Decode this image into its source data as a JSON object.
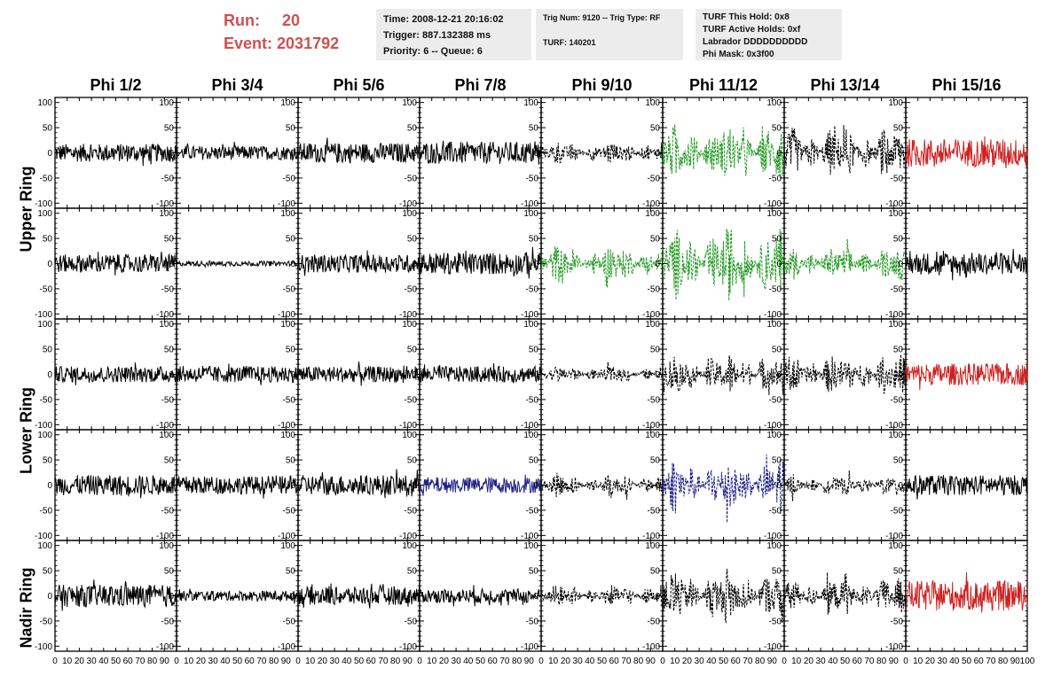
{
  "header": {
    "run_label": "Run:",
    "run_value": "20",
    "event_label": "Event:",
    "event_value": "2031792",
    "time": "Time: 2008-12-21 20:16:02",
    "trigger": "Trigger: 887.132388 ms",
    "priority": "Priority: 6 -- Queue: 6",
    "trig_num": "Trig Num: 9120 -- Trig Type: RF",
    "turf": "TURF: 140201",
    "turf_this_hold": "TURF This Hold: 0x8",
    "turf_active_holds": "TURF Active Holds: 0xf",
    "labrador": "Labrador DDDDDDDDDD",
    "phi_mask": "Phi Mask: 0x3f00"
  },
  "columns": [
    "Phi 1/2",
    "Phi 3/4",
    "Phi 5/6",
    "Phi 7/8",
    "Phi 9/10",
    "Phi 11/12",
    "Phi 13/14",
    "Phi 15/16"
  ],
  "rings": [
    "Upper Ring",
    "Lower Ring",
    "Nadir Ring"
  ],
  "colors": {
    "black": "#000000",
    "green": "#229922",
    "red": "#cc2222",
    "blue": "#222288",
    "header_red": "#d05050",
    "info_bg": "#ececec"
  },
  "chart_data": {
    "type": "line",
    "xlim": [
      0,
      100
    ],
    "ylim": [
      -110,
      110
    ],
    "x_ticks": [
      0,
      10,
      20,
      30,
      40,
      50,
      60,
      70,
      80,
      90,
      100
    ],
    "y_ticks": [
      -100,
      -50,
      0,
      50,
      100
    ],
    "x_tick_labels": [
      "0",
      "10",
      "20",
      "30",
      "40",
      "50",
      "60",
      "70",
      "80",
      "90",
      "10",
      "0",
      "10",
      "20",
      "30",
      "40",
      "50",
      "60",
      "70",
      "80",
      "90",
      "100"
    ],
    "y_tick_labels": [
      "-100",
      "-50",
      "0",
      "50",
      "100"
    ],
    "panels": [
      [
        {
          "amp": 18,
          "color": "black",
          "dash": false
        },
        {
          "amp": 14,
          "color": "black",
          "dash": false
        },
        {
          "amp": 20,
          "color": "black",
          "dash": false
        },
        {
          "amp": 22,
          "color": "black",
          "dash": false
        },
        {
          "amp": 25,
          "color": "black",
          "dash": true
        },
        {
          "amp": 60,
          "color": "green",
          "dash": true
        },
        {
          "amp": 55,
          "color": "black",
          "dash": true
        },
        {
          "amp": 28,
          "color": "red",
          "dash": false
        }
      ],
      [
        {
          "amp": 18,
          "color": "black",
          "dash": false
        },
        {
          "amp": 5,
          "color": "black",
          "dash": false
        },
        {
          "amp": 18,
          "color": "black",
          "dash": false
        },
        {
          "amp": 22,
          "color": "black",
          "dash": false
        },
        {
          "amp": 40,
          "color": "green",
          "dash": true
        },
        {
          "amp": 75,
          "color": "green",
          "dash": true
        },
        {
          "amp": 35,
          "color": "green",
          "dash": true
        },
        {
          "amp": 22,
          "color": "black",
          "dash": false
        }
      ],
      [
        {
          "amp": 16,
          "color": "black",
          "dash": false
        },
        {
          "amp": 16,
          "color": "black",
          "dash": false
        },
        {
          "amp": 16,
          "color": "black",
          "dash": false
        },
        {
          "amp": 16,
          "color": "black",
          "dash": false
        },
        {
          "amp": 18,
          "color": "black",
          "dash": true
        },
        {
          "amp": 45,
          "color": "black",
          "dash": true
        },
        {
          "amp": 45,
          "color": "black",
          "dash": true
        },
        {
          "amp": 22,
          "color": "red",
          "dash": false
        }
      ],
      [
        {
          "amp": 20,
          "color": "black",
          "dash": false
        },
        {
          "amp": 18,
          "color": "black",
          "dash": false
        },
        {
          "amp": 20,
          "color": "black",
          "dash": false
        },
        {
          "amp": 16,
          "color": "blue",
          "dash": false
        },
        {
          "amp": 25,
          "color": "black",
          "dash": true
        },
        {
          "amp": 60,
          "color": "blue",
          "dash": true
        },
        {
          "amp": 22,
          "color": "black",
          "dash": true
        },
        {
          "amp": 20,
          "color": "black",
          "dash": false
        }
      ],
      [
        {
          "amp": 22,
          "color": "black",
          "dash": false
        },
        {
          "amp": 10,
          "color": "black",
          "dash": false
        },
        {
          "amp": 18,
          "color": "black",
          "dash": false
        },
        {
          "amp": 14,
          "color": "black",
          "dash": false
        },
        {
          "amp": 25,
          "color": "black",
          "dash": true
        },
        {
          "amp": 60,
          "color": "black",
          "dash": true
        },
        {
          "amp": 40,
          "color": "black",
          "dash": true
        },
        {
          "amp": 30,
          "color": "red",
          "dash": false
        }
      ]
    ]
  }
}
